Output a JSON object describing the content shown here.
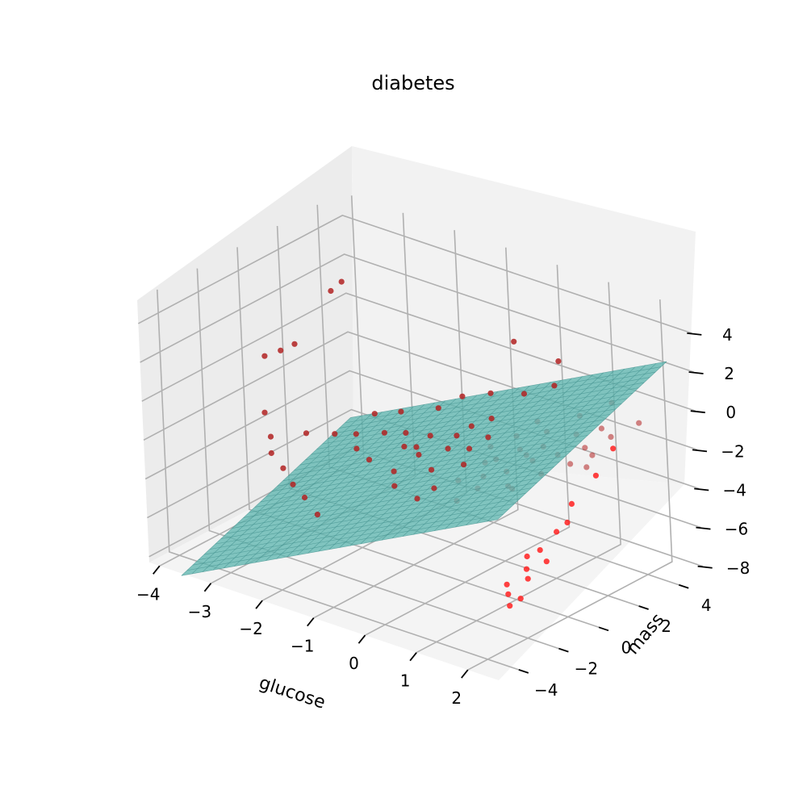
{
  "chart_data": {
    "type": "scatter",
    "title": "diabetes",
    "xlabel": "glucose",
    "ylabel": "mass",
    "zlabel": "",
    "x_ticks": [
      "−4",
      "−3",
      "−2",
      "−1",
      "0",
      "1",
      "2"
    ],
    "y_ticks": [
      "−4",
      "−2",
      "0",
      "2",
      "4"
    ],
    "z_ticks": [
      "−8",
      "−6",
      "−4",
      "−2",
      "0",
      "2",
      "4"
    ],
    "xlim": [
      -4.2,
      2.6
    ],
    "ylim": [
      -5.0,
      5.2
    ],
    "zlim": [
      -8.3,
      5.2
    ],
    "grid": true,
    "plane": {
      "intercept": -2.2,
      "slope_x": 1.35,
      "slope_y": 0.4,
      "color": "#5fb6b0"
    },
    "series": [
      {
        "color": "#b22222",
        "points": [
          [
            -2.9,
            1.8,
            3.6
          ],
          [
            -3.0,
            1.5,
            3.2
          ],
          [
            -3.4,
            0.6,
            0.6
          ],
          [
            -3.6,
            0.4,
            0.2
          ],
          [
            -3.8,
            0.1,
            -0.1
          ],
          [
            -3.2,
            -1.5,
            -1.6
          ],
          [
            -2.9,
            -2.0,
            -2.3
          ],
          [
            -2.7,
            -2.5,
            -2.7
          ],
          [
            -2.4,
            -2.7,
            -3.1
          ],
          [
            -2.1,
            -3.0,
            -3.5
          ],
          [
            -1.8,
            -3.2,
            -3.8
          ],
          [
            -1.4,
            -3.6,
            -4.1
          ],
          [
            -2.6,
            -1.0,
            -2.4
          ],
          [
            -2.2,
            -0.6,
            -2.3
          ],
          [
            -1.9,
            -0.3,
            -2.2
          ],
          [
            -1.5,
            0.1,
            -2.0
          ],
          [
            -1.2,
            0.4,
            -1.9
          ],
          [
            -1.0,
            -0.2,
            -2.1
          ],
          [
            -0.8,
            0.6,
            -1.8
          ],
          [
            -0.6,
            -0.5,
            -2.0
          ],
          [
            -0.4,
            0.9,
            -1.6
          ],
          [
            -0.3,
            0.2,
            -1.8
          ],
          [
            -0.2,
            -0.9,
            -2.2
          ],
          [
            0.0,
            0.5,
            -1.7
          ],
          [
            0.1,
            1.2,
            -1.4
          ],
          [
            0.2,
            -0.3,
            -1.9
          ],
          [
            0.3,
            0.8,
            -1.5
          ],
          [
            0.4,
            -1.1,
            -2.1
          ],
          [
            0.5,
            1.6,
            -1.2
          ],
          [
            0.6,
            0.3,
            -1.6
          ],
          [
            0.7,
            -0.6,
            -1.9
          ],
          [
            0.8,
            1.0,
            -1.3
          ],
          [
            0.9,
            2.1,
            -0.9
          ],
          [
            1.0,
            -0.2,
            -1.6
          ],
          [
            1.1,
            1.4,
            -1.1
          ],
          [
            1.2,
            0.6,
            -1.3
          ],
          [
            1.3,
            -0.9,
            -1.7
          ],
          [
            1.4,
            2.3,
            -0.7
          ],
          [
            1.5,
            1.1,
            -1.0
          ],
          [
            1.6,
            0.0,
            -1.3
          ],
          [
            1.7,
            2.8,
            -0.4
          ],
          [
            1.8,
            1.7,
            -0.7
          ],
          [
            1.9,
            0.7,
            -0.9
          ],
          [
            2.0,
            2.5,
            -0.4
          ],
          [
            2.1,
            1.3,
            -0.6
          ],
          [
            2.2,
            3.4,
            0.0
          ],
          [
            2.3,
            0.5,
            -0.6
          ],
          [
            -1.1,
            1.8,
            -1.3
          ],
          [
            -0.9,
            2.5,
            -0.9
          ],
          [
            -0.5,
            2.9,
            -0.6
          ],
          [
            0.0,
            3.3,
            -0.4
          ],
          [
            0.4,
            3.8,
            0.1
          ],
          [
            -1.6,
            1.2,
            -1.6
          ],
          [
            -2.0,
            0.9,
            -1.9
          ],
          [
            -1.3,
            -1.2,
            -2.5
          ],
          [
            -0.7,
            -1.5,
            -2.4
          ],
          [
            0.2,
            -1.8,
            -2.3
          ],
          [
            0.9,
            -1.4,
            -1.9
          ],
          [
            1.5,
            -1.2,
            -1.5
          ],
          [
            -0.1,
            1.9,
            -1.0
          ],
          [
            0.6,
            2.4,
            -0.8
          ],
          [
            1.2,
            3.0,
            -0.3
          ],
          [
            -0.5,
            -2.0,
            -2.7
          ],
          [
            0.1,
            -2.4,
            -2.6
          ],
          [
            0.8,
            -2.2,
            -2.2
          ],
          [
            -1.7,
            -0.8,
            -2.5
          ],
          [
            -0.3,
            1.4,
            -1.3
          ],
          [
            0.5,
            0.0,
            -1.7
          ],
          [
            1.0,
            0.8,
            -1.3
          ],
          [
            -0.8,
            -0.1,
            -2.0
          ],
          [
            1.6,
            3.6,
            0.4
          ],
          [
            0.3,
            4.3,
            1.0
          ],
          [
            -0.4,
            3.9,
            1.6
          ]
        ]
      },
      {
        "color": "#ff2020",
        "points": [
          [
            2.3,
            -2.6,
            -3.5
          ],
          [
            2.4,
            -2.9,
            -3.9
          ],
          [
            2.5,
            -3.1,
            -4.2
          ],
          [
            2.2,
            -3.4,
            -4.6
          ],
          [
            2.3,
            -3.6,
            -4.9
          ],
          [
            2.4,
            -3.8,
            -5.3
          ],
          [
            2.5,
            -3.5,
            -5.0
          ],
          [
            2.6,
            -2.4,
            -3.6
          ],
          [
            2.4,
            -2.2,
            -3.3
          ],
          [
            2.5,
            -1.6,
            -2.6
          ],
          [
            2.6,
            -1.3,
            -2.2
          ],
          [
            2.5,
            -0.8,
            -1.6
          ],
          [
            2.6,
            0.2,
            -0.6
          ],
          [
            2.6,
            1.1,
            0.3
          ]
        ]
      }
    ]
  }
}
